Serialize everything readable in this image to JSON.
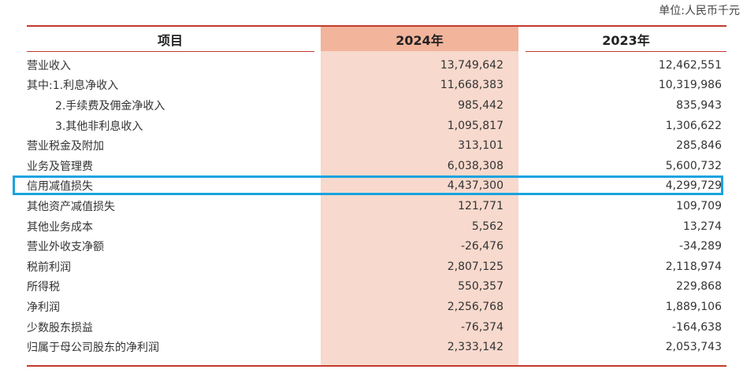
{
  "unit_label": "单位:人民币千元",
  "header": {
    "col_item": "项目",
    "col_2024": "2024年",
    "col_2023": "2023年"
  },
  "rows": [
    {
      "name": "营业收入",
      "v2024": "13,749,642",
      "v2023": "12,462,551",
      "indent": false
    },
    {
      "name": "其中:1.利息净收入",
      "v2024": "11,668,383",
      "v2023": "10,319,986",
      "indent": false
    },
    {
      "name": "2.手续费及佣金净收入",
      "v2024": "985,442",
      "v2023": "835,943",
      "indent": true
    },
    {
      "name": "3.其他非利息收入",
      "v2024": "1,095,817",
      "v2023": "1,306,622",
      "indent": true
    },
    {
      "name": "营业税金及附加",
      "v2024": "313,101",
      "v2023": "285,846",
      "indent": false
    },
    {
      "name": "业务及管理费",
      "v2024": "6,038,308",
      "v2023": "5,600,732",
      "indent": false
    },
    {
      "name": "信用减值损失",
      "v2024": "4,437,300",
      "v2023": "4,299,729",
      "indent": false
    },
    {
      "name": "其他资产减值损失",
      "v2024": "121,771",
      "v2023": "109,709",
      "indent": false
    },
    {
      "name": "其他业务成本",
      "v2024": "5,562",
      "v2023": "13,274",
      "indent": false
    },
    {
      "name": "营业外收支净额",
      "v2024": "-26,476",
      "v2023": "-34,289",
      "indent": false
    },
    {
      "name": "税前利润",
      "v2024": "2,807,125",
      "v2023": "2,118,974",
      "indent": false
    },
    {
      "name": "所得税",
      "v2024": "550,357",
      "v2023": "229,868",
      "indent": false
    },
    {
      "name": "净利润",
      "v2024": "2,256,768",
      "v2023": "1,889,106",
      "indent": false
    },
    {
      "name": "少数股东损益",
      "v2024": "-76,374",
      "v2023": "-164,638",
      "indent": false
    },
    {
      "name": "归属于母公司股东的净利润",
      "v2024": "2,333,142",
      "v2023": "2,053,743",
      "indent": false
    }
  ],
  "colors": {
    "rule": "#c23a2e",
    "band_2024": "#f7d9cd",
    "band_2024_header": "#f2b49b",
    "highlight": "#1aa3de"
  }
}
